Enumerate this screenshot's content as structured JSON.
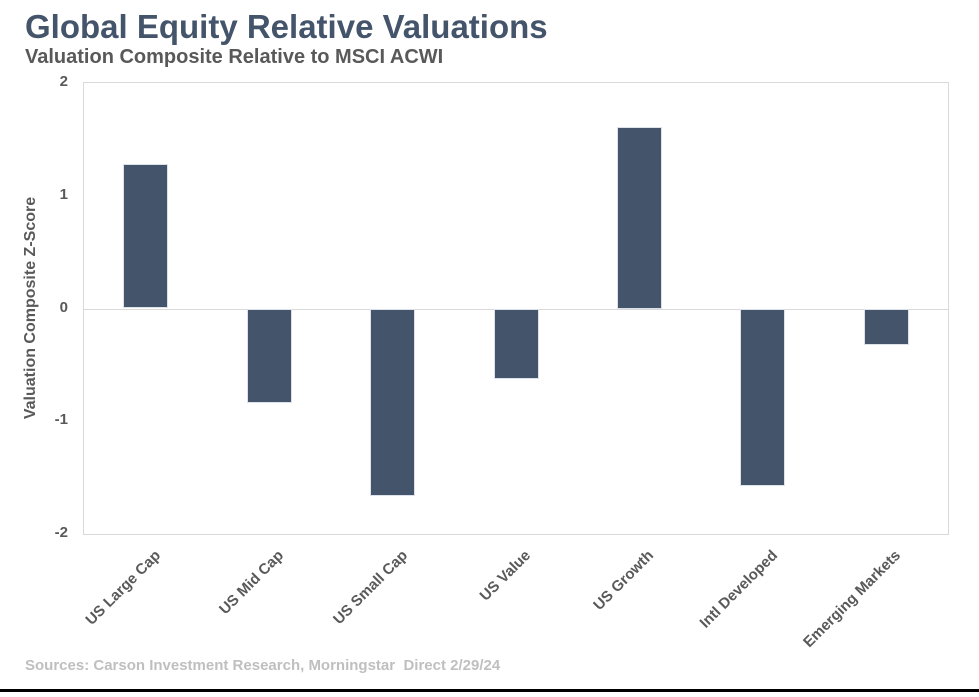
{
  "chart_data": {
    "type": "bar",
    "title": "Global Equity Relative Valuations",
    "subtitle": "Valuation Composite Relative to MSCI ACWI",
    "ylabel": "Valuation Composite Z-Score",
    "xlabel": "",
    "categories": [
      "US Large Cap",
      "US Mid Cap",
      "US Small Cap",
      "US Value",
      "US Growth",
      "Intl Developed",
      "Emerging Markets"
    ],
    "values": [
      1.28,
      -0.83,
      -1.66,
      -0.62,
      1.61,
      -1.57,
      -0.32
    ],
    "ylim": [
      -2,
      2
    ],
    "yticks": [
      2,
      1,
      0,
      -1,
      -2
    ],
    "grid": false,
    "legend_position": "none",
    "bar_color": "#44546A",
    "source": "Sources: Carson Investment Research, Morningstar  Direct 2/29/24"
  },
  "colors": {
    "title_text": "#44546A",
    "subtitle_text": "#595959",
    "axis_text": "#595959",
    "source_text": "#BFBFBF",
    "plot_border": "#D9D9D9",
    "zero_line": "#D9D9D9",
    "bottom_rule": "#000000",
    "background": "#FFFFFF"
  }
}
